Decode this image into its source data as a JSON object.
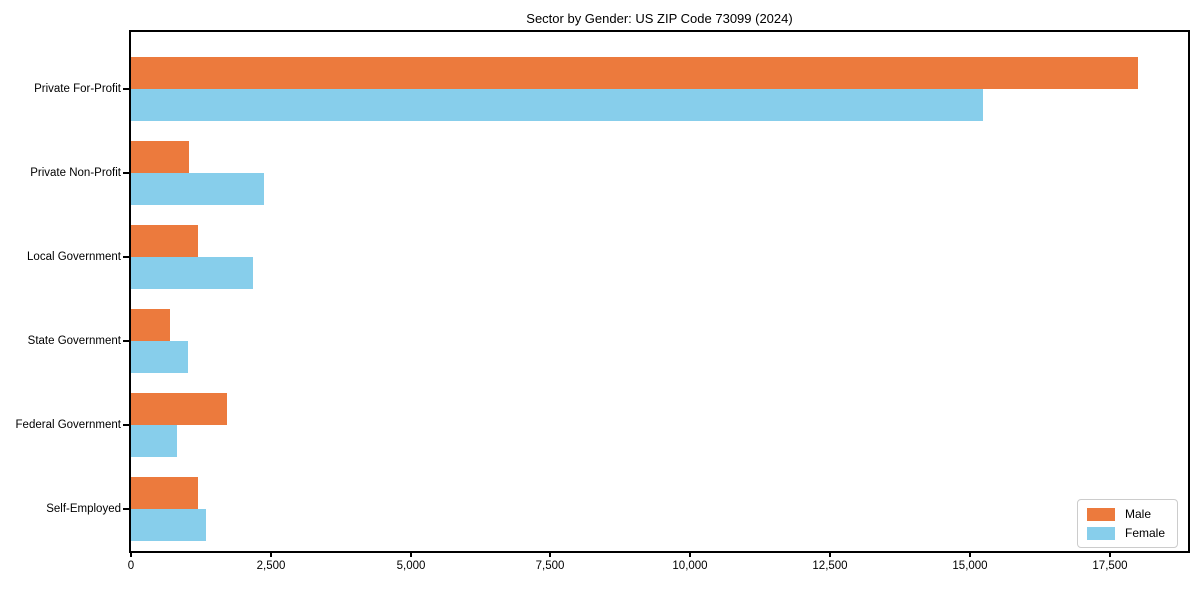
{
  "chart_data": {
    "type": "bar",
    "orientation": "horizontal",
    "title": "Sector by Gender: US ZIP Code 73099 (2024)",
    "categories": [
      "Private For-Profit",
      "Private Non-Profit",
      "Local Government",
      "State Government",
      "Federal Government",
      "Self-Employed"
    ],
    "series": [
      {
        "name": "Male",
        "color": "#EC7A3D",
        "values": [
          18000,
          1040,
          1200,
          700,
          1720,
          1200
        ]
      },
      {
        "name": "Female",
        "color": "#87CEEB",
        "values": [
          15230,
          2370,
          2190,
          1020,
          820,
          1340
        ]
      }
    ],
    "xlabel": "",
    "ylabel": "",
    "xlim": [
      0,
      18900
    ],
    "xticks": [
      0,
      2500,
      5000,
      7500,
      10000,
      12500,
      15000,
      17500
    ],
    "xtick_labels": [
      "0",
      "2,500",
      "5,000",
      "7,500",
      "10,000",
      "12,500",
      "15,000",
      "17,500"
    ],
    "grid": false,
    "legend": {
      "position": "lower right",
      "entries": [
        "Male",
        "Female"
      ]
    }
  }
}
